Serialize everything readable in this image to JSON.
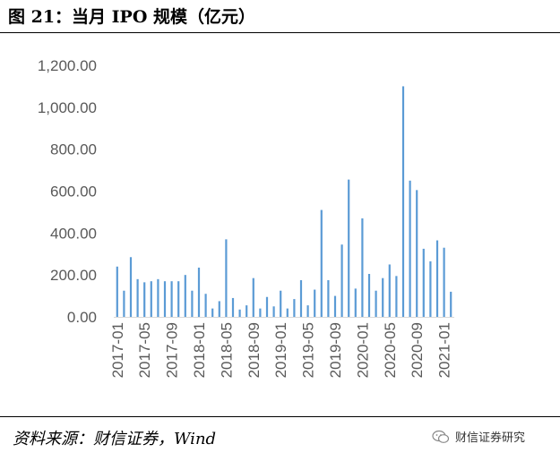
{
  "figure": {
    "title": "图 21：当月 IPO 规模（亿元）",
    "source": "资料来源：财信证券，Wind",
    "watermark": "财信证券研究",
    "watermark_icon": "wechat-icon"
  },
  "colors": {
    "bar": "#5b9bd5",
    "axis": "#d9d9d9",
    "tick_text": "#595959"
  },
  "chart_data": {
    "type": "bar",
    "title": "",
    "xlabel": "",
    "ylabel": "",
    "ylim": [
      0,
      1200
    ],
    "grid": false,
    "legend": "none",
    "y_tick_labels": [
      "0.00",
      "200.00",
      "400.00",
      "600.00",
      "800.00",
      "1,000.00",
      "1,200.00"
    ],
    "y_ticks": [
      0,
      200,
      400,
      600,
      800,
      1000,
      1200
    ],
    "x_tick_labels": [
      "2017-01",
      "2017-05",
      "2017-09",
      "2018-01",
      "2018-05",
      "2018-09",
      "2019-01",
      "2019-05",
      "2019-09",
      "2020-01",
      "2020-05",
      "2020-09",
      "2021-01"
    ],
    "categories": [
      "2017-01",
      "2017-02",
      "2017-03",
      "2017-04",
      "2017-05",
      "2017-06",
      "2017-07",
      "2017-08",
      "2017-09",
      "2017-10",
      "2017-11",
      "2017-12",
      "2018-01",
      "2018-02",
      "2018-03",
      "2018-04",
      "2018-05",
      "2018-06",
      "2018-07",
      "2018-08",
      "2018-09",
      "2018-10",
      "2018-11",
      "2018-12",
      "2019-01",
      "2019-02",
      "2019-03",
      "2019-04",
      "2019-05",
      "2019-06",
      "2019-07",
      "2019-08",
      "2019-09",
      "2019-10",
      "2019-11",
      "2019-12",
      "2020-01",
      "2020-02",
      "2020-03",
      "2020-04",
      "2020-05",
      "2020-06",
      "2020-07",
      "2020-08",
      "2020-09",
      "2020-10",
      "2020-11",
      "2020-12",
      "2021-01",
      "2021-02"
    ],
    "values": [
      240,
      125,
      285,
      180,
      165,
      170,
      180,
      170,
      170,
      170,
      200,
      125,
      235,
      110,
      40,
      75,
      370,
      90,
      35,
      55,
      185,
      40,
      95,
      50,
      125,
      40,
      85,
      175,
      55,
      130,
      510,
      175,
      100,
      345,
      655,
      135,
      470,
      205,
      125,
      185,
      250,
      195,
      1100,
      650,
      605,
      325,
      265,
      365,
      330,
      120
    ]
  }
}
